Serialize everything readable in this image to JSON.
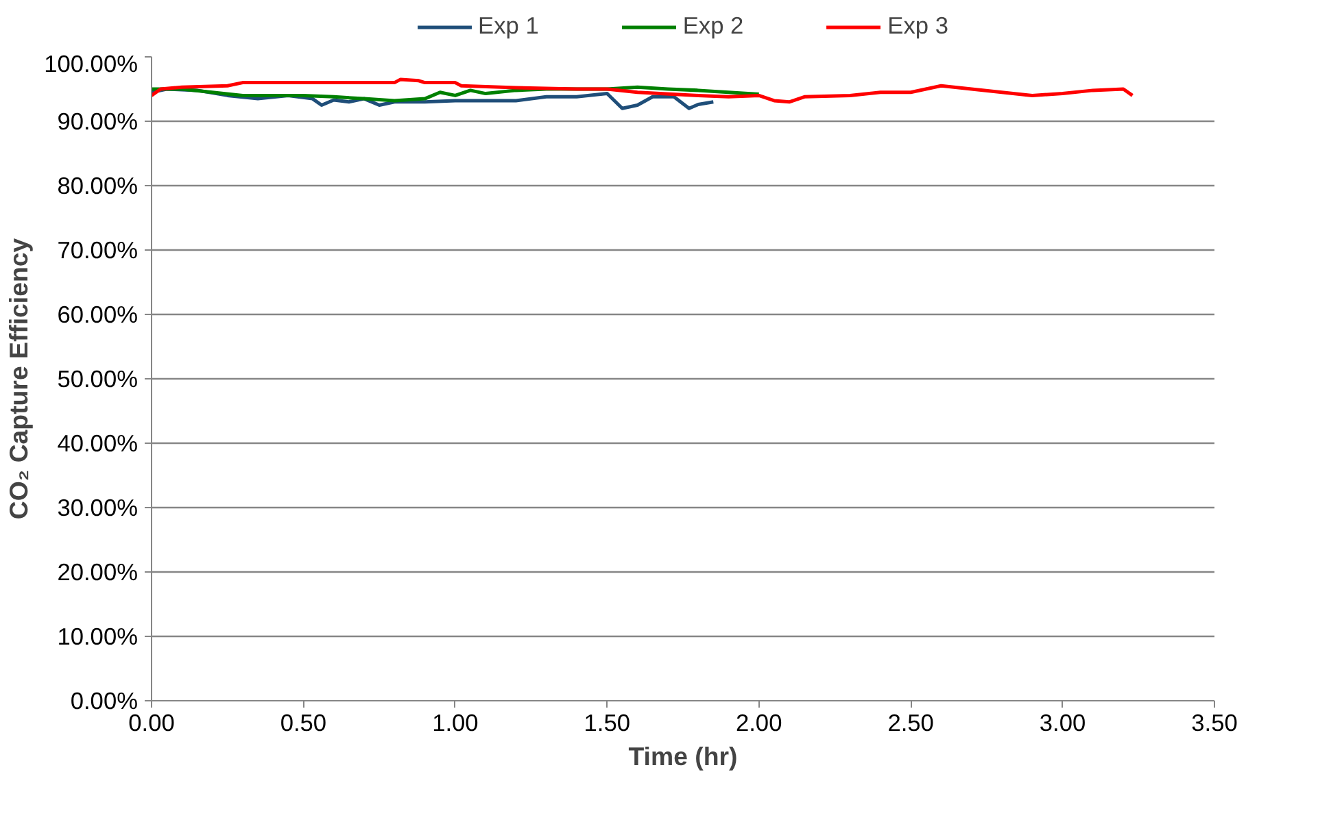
{
  "chart_data": {
    "type": "line",
    "xlabel": "Time (hr)",
    "ylabel": "CO₂ Capture Efficiency",
    "legend": "top",
    "grid": "y",
    "marker": "none",
    "line_style": "solid",
    "xlim": [
      0,
      3.5
    ],
    "ylim": [
      0,
      100
    ],
    "xticks": [
      {
        "value": 0,
        "label": "0.00"
      },
      {
        "value": 0.5,
        "label": "0.50"
      },
      {
        "value": 1,
        "label": "1.00"
      },
      {
        "value": 1.5,
        "label": "1.50"
      },
      {
        "value": 2,
        "label": "2.00"
      },
      {
        "value": 2.5,
        "label": "2.50"
      },
      {
        "value": 3,
        "label": "3.00"
      },
      {
        "value": 3.5,
        "label": "3.50"
      }
    ],
    "yticks": [
      {
        "value": 0,
        "label": "0.00%"
      },
      {
        "value": 10,
        "label": "10.00%"
      },
      {
        "value": 20,
        "label": "20.00%"
      },
      {
        "value": 30,
        "label": "30.00%"
      },
      {
        "value": 40,
        "label": "40.00%"
      },
      {
        "value": 50,
        "label": "50.00%"
      },
      {
        "value": 60,
        "label": "60.00%"
      },
      {
        "value": 70,
        "label": "70.00%"
      },
      {
        "value": 80,
        "label": "80.00%"
      },
      {
        "value": 90,
        "label": "90.00%"
      },
      {
        "value": 100,
        "label": "100.00%"
      }
    ],
    "series": [
      {
        "name": "Exp 1",
        "color": "#1f4e79",
        "x": [
          0,
          0.05,
          0.15,
          0.25,
          0.35,
          0.45,
          0.53,
          0.56,
          0.6,
          0.65,
          0.7,
          0.75,
          0.8,
          0.9,
          1.0,
          1.2,
          1.3,
          1.4,
          1.5,
          1.55,
          1.6,
          1.65,
          1.72,
          1.77,
          1.8,
          1.85
        ],
        "values": [
          94.5,
          95,
          94.8,
          94,
          93.5,
          94,
          93.5,
          92.5,
          93.3,
          93,
          93.5,
          92.5,
          93,
          93,
          93.2,
          93.2,
          93.8,
          93.8,
          94.3,
          92,
          92.5,
          93.8,
          93.8,
          92,
          92.6,
          93
        ]
      },
      {
        "name": "Exp 2",
        "color": "#008000",
        "x": [
          0,
          0.1,
          0.2,
          0.3,
          0.4,
          0.5,
          0.6,
          0.7,
          0.8,
          0.9,
          0.95,
          1.0,
          1.05,
          1.1,
          1.2,
          1.3,
          1.4,
          1.5,
          1.6,
          1.7,
          1.8,
          1.9,
          2.0
        ],
        "values": [
          95,
          95,
          94.5,
          94,
          94,
          94,
          93.8,
          93.5,
          93.2,
          93.5,
          94.5,
          94,
          94.8,
          94.3,
          94.8,
          95,
          95,
          95,
          95.3,
          95,
          94.8,
          94.5,
          94.2
        ]
      },
      {
        "name": "Exp 3",
        "color": "#ff0000",
        "x": [
          0,
          0.03,
          0.1,
          0.25,
          0.3,
          0.5,
          0.8,
          0.82,
          0.88,
          0.9,
          1.0,
          1.02,
          1.2,
          1.4,
          1.5,
          1.6,
          1.8,
          1.9,
          2.0,
          2.05,
          2.1,
          2.15,
          2.3,
          2.4,
          2.5,
          2.6,
          2.7,
          2.8,
          2.9,
          3.0,
          3.1,
          3.2,
          3.23
        ],
        "values": [
          94,
          95,
          95.3,
          95.5,
          96,
          96,
          96,
          96.5,
          96.3,
          96,
          96,
          95.5,
          95.2,
          95,
          95,
          94.5,
          94,
          93.8,
          94,
          93.2,
          93,
          93.8,
          94,
          94.5,
          94.5,
          95.5,
          95,
          94.5,
          94,
          94.3,
          94.8,
          95,
          94
        ]
      }
    ]
  }
}
